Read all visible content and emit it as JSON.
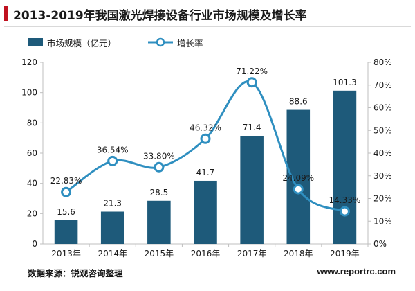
{
  "title": "2013-2019年我国激光焊接设备行业市场规模及增长率",
  "source": "数据来源：锐观咨询整理",
  "brand": "www.reportrc.com",
  "colors": {
    "bar": "#1e5a7a",
    "line": "#2f8fc0",
    "accent": "#c0111f"
  },
  "chart_data": {
    "type": "bar",
    "categories": [
      "2013年",
      "2014年",
      "2015年",
      "2016年",
      "2017年",
      "2018年",
      "2019年"
    ],
    "series": [
      {
        "name": "市场规模（亿元）",
        "type": "bar",
        "axis": "left",
        "values": [
          15.6,
          21.3,
          28.5,
          41.7,
          71.4,
          88.6,
          101.3
        ],
        "labels": [
          "15.6",
          "21.3",
          "28.5",
          "41.7",
          "71.4",
          "88.6",
          "101.3"
        ]
      },
      {
        "name": "增长率",
        "type": "line",
        "axis": "right",
        "values": [
          22.83,
          36.54,
          33.8,
          46.32,
          71.22,
          24.09,
          14.33
        ],
        "labels": [
          "22.83%",
          "36.54%",
          "33.80%",
          "46.32%",
          "71.22%",
          "24.09%",
          "14.33%"
        ]
      }
    ],
    "ylim": [
      0,
      120
    ],
    "y2lim": [
      0,
      80
    ],
    "yticks": [
      "0",
      "20",
      "40",
      "60",
      "80",
      "100",
      "120"
    ],
    "y2ticks": [
      "0%",
      "10%",
      "20%",
      "30%",
      "40%",
      "50%",
      "60%",
      "70%",
      "80%"
    ],
    "legend": "top-left",
    "grid": false
  }
}
